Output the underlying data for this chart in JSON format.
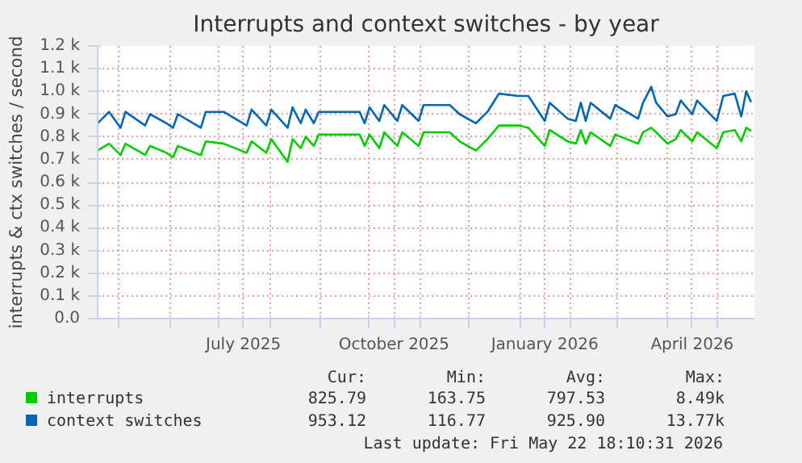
{
  "chart_data": {
    "type": "line",
    "title": "Interrupts and context switches - by year",
    "ylabel": "interrupts & ctx switches / second",
    "x": [
      "2025-04-18",
      "2025-04-25",
      "2025-05-02",
      "2025-05-05",
      "2025-05-17",
      "2025-05-20",
      "2025-05-30",
      "2025-06-03",
      "2025-06-06",
      "2025-06-20",
      "2025-06-23",
      "2025-07-04",
      "2025-07-18",
      "2025-07-21",
      "2025-07-30",
      "2025-08-02",
      "2025-08-12",
      "2025-08-15",
      "2025-08-20",
      "2025-08-23",
      "2025-08-28",
      "2025-08-31",
      "2025-09-25",
      "2025-09-28",
      "2025-10-01",
      "2025-10-07",
      "2025-10-10",
      "2025-10-18",
      "2025-10-21",
      "2025-10-31",
      "2025-11-03",
      "2025-11-19",
      "2025-11-25",
      "2025-12-05",
      "2025-12-12",
      "2025-12-19",
      "2025-12-31",
      "2026-01-06",
      "2026-01-16",
      "2026-01-19",
      "2026-01-30",
      "2026-02-04",
      "2026-02-07",
      "2026-02-10",
      "2026-02-13",
      "2026-02-25",
      "2026-02-28",
      "2026-03-14",
      "2026-03-17",
      "2026-03-22",
      "2026-03-25",
      "2026-04-01",
      "2026-04-06",
      "2026-04-09",
      "2026-04-16",
      "2026-04-19",
      "2026-05-01",
      "2026-05-05",
      "2026-05-12",
      "2026-05-16",
      "2026-05-19",
      "2026-05-22"
    ],
    "series": [
      {
        "name": "interrupts",
        "color": "#00cc00",
        "values": [
          0.74,
          0.77,
          0.72,
          0.77,
          0.72,
          0.76,
          0.73,
          0.71,
          0.76,
          0.72,
          0.78,
          0.77,
          0.73,
          0.78,
          0.73,
          0.79,
          0.69,
          0.79,
          0.75,
          0.8,
          0.76,
          0.81,
          0.81,
          0.76,
          0.81,
          0.75,
          0.82,
          0.76,
          0.82,
          0.76,
          0.82,
          0.82,
          0.78,
          0.74,
          0.79,
          0.85,
          0.85,
          0.84,
          0.76,
          0.83,
          0.78,
          0.77,
          0.83,
          0.77,
          0.82,
          0.76,
          0.81,
          0.77,
          0.82,
          0.84,
          0.82,
          0.77,
          0.79,
          0.83,
          0.78,
          0.82,
          0.75,
          0.82,
          0.83,
          0.78,
          0.84,
          0.826
        ]
      },
      {
        "name": "context switches",
        "color": "#0066b3",
        "values": [
          0.86,
          0.91,
          0.84,
          0.91,
          0.85,
          0.9,
          0.86,
          0.84,
          0.9,
          0.84,
          0.91,
          0.91,
          0.85,
          0.92,
          0.85,
          0.92,
          0.84,
          0.93,
          0.86,
          0.92,
          0.86,
          0.91,
          0.91,
          0.86,
          0.93,
          0.87,
          0.94,
          0.87,
          0.94,
          0.87,
          0.94,
          0.94,
          0.9,
          0.86,
          0.91,
          0.99,
          0.98,
          0.98,
          0.87,
          0.95,
          0.88,
          0.87,
          0.95,
          0.87,
          0.95,
          0.88,
          0.94,
          0.88,
          0.95,
          1.02,
          0.95,
          0.89,
          0.9,
          0.96,
          0.9,
          0.96,
          0.87,
          0.98,
          0.99,
          0.89,
          1.0,
          0.953
        ]
      }
    ],
    "xlim": [
      "2025-04-18",
      "2026-05-24"
    ],
    "xticks": [
      {
        "value": "2025-05-01",
        "label": null
      },
      {
        "value": "2025-06-01",
        "label": null
      },
      {
        "value": "2025-07-01",
        "label": null
      },
      {
        "value": "2025-07-16",
        "label": "July 2025"
      },
      {
        "value": "2025-08-01",
        "label": null
      },
      {
        "value": "2025-09-01",
        "label": null
      },
      {
        "value": "2025-10-01",
        "label": null
      },
      {
        "value": "2025-10-16",
        "label": "October 2025"
      },
      {
        "value": "2025-11-01",
        "label": null
      },
      {
        "value": "2025-12-01",
        "label": null
      },
      {
        "value": "2026-01-01",
        "label": null
      },
      {
        "value": "2026-01-16",
        "label": "January 2026"
      },
      {
        "value": "2026-02-01",
        "label": null
      },
      {
        "value": "2026-03-01",
        "label": null
      },
      {
        "value": "2026-04-01",
        "label": null
      },
      {
        "value": "2026-04-16",
        "label": "April 2026"
      },
      {
        "value": "2026-05-01",
        "label": null
      }
    ],
    "ylim": [
      0,
      1.2
    ],
    "yticks": [
      {
        "value": 0,
        "label": "0.0"
      },
      {
        "value": 0.1,
        "label": "0.1 k"
      },
      {
        "value": 0.2,
        "label": "0.2 k"
      },
      {
        "value": 0.3,
        "label": "0.3 k"
      },
      {
        "value": 0.4,
        "label": "0.4 k"
      },
      {
        "value": 0.5,
        "label": "0.5 k"
      },
      {
        "value": 0.6,
        "label": "0.6 k"
      },
      {
        "value": 0.7,
        "label": "0.7 k"
      },
      {
        "value": 0.8,
        "label": "0.8 k"
      },
      {
        "value": 0.9,
        "label": "0.9 k"
      },
      {
        "value": 1.0,
        "label": "1.0 k"
      },
      {
        "value": 1.1,
        "label": "1.1 k"
      },
      {
        "value": 1.2,
        "label": "1.2 k"
      }
    ],
    "grid": true,
    "legend": "bottom",
    "marker": "none",
    "line_style": "solid",
    "annotations": [
      "Cur:",
      "Min:",
      "Avg:",
      "Max:",
      "825.79",
      "163.75",
      "797.53",
      "8.49k",
      "953.12",
      "116.77",
      "925.90",
      "13.77k",
      "Last update: Fri May 22 18:10:31 2026"
    ]
  }
}
